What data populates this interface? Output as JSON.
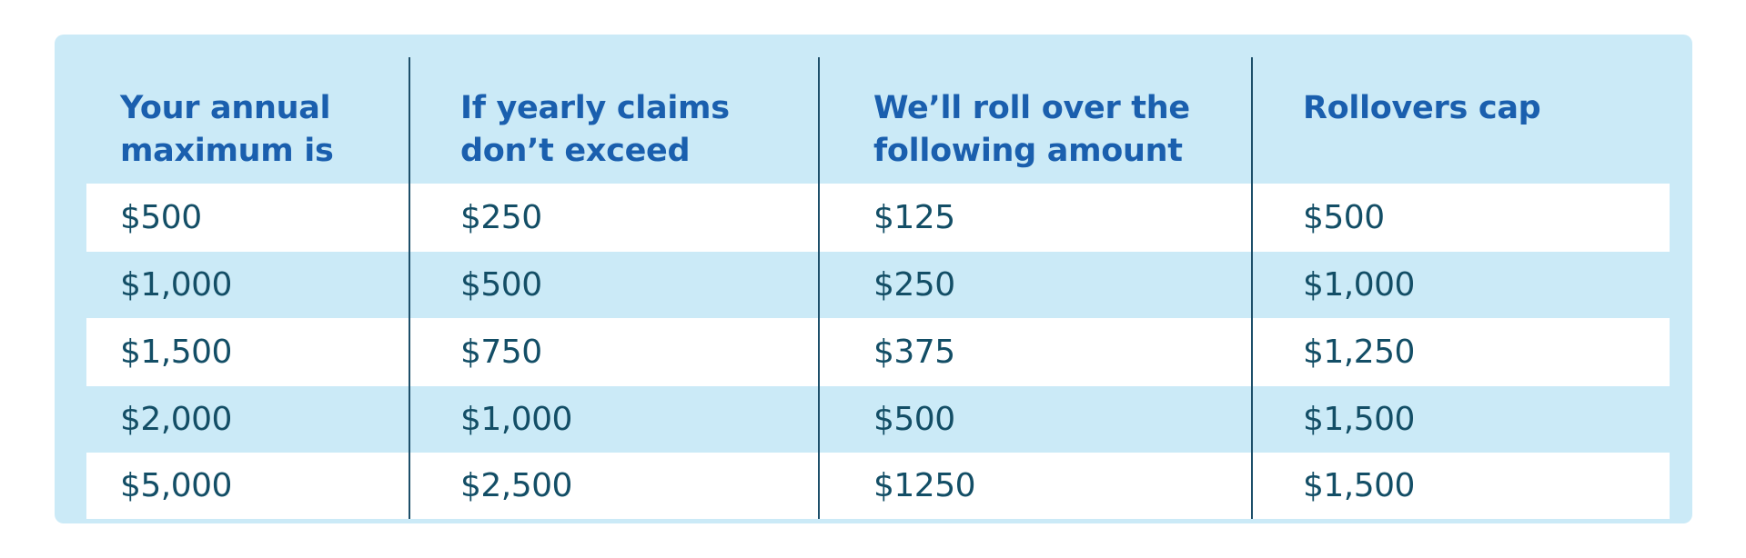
{
  "table": {
    "headers": [
      "Your annual\nmaximum is",
      "If yearly claims\ndon’t exceed",
      "We’ll roll over the\nfollowing amount",
      "Rollovers cap"
    ],
    "rows": [
      [
        "$500",
        "$250",
        "$125",
        "$500"
      ],
      [
        "$1,000",
        "$500",
        "$250",
        "$1,000"
      ],
      [
        "$1,500",
        "$750",
        "$375",
        "$1,250"
      ],
      [
        "$2,000",
        "$1,000",
        "$500",
        "$1,500"
      ],
      [
        "$5,000",
        "$2,500",
        "$1250",
        "$1,500"
      ]
    ]
  },
  "colors": {
    "panel_background": "#cbeaf7",
    "header_text": "#1a5fae",
    "body_text": "#134e66",
    "divider": "#1d4f6a"
  }
}
